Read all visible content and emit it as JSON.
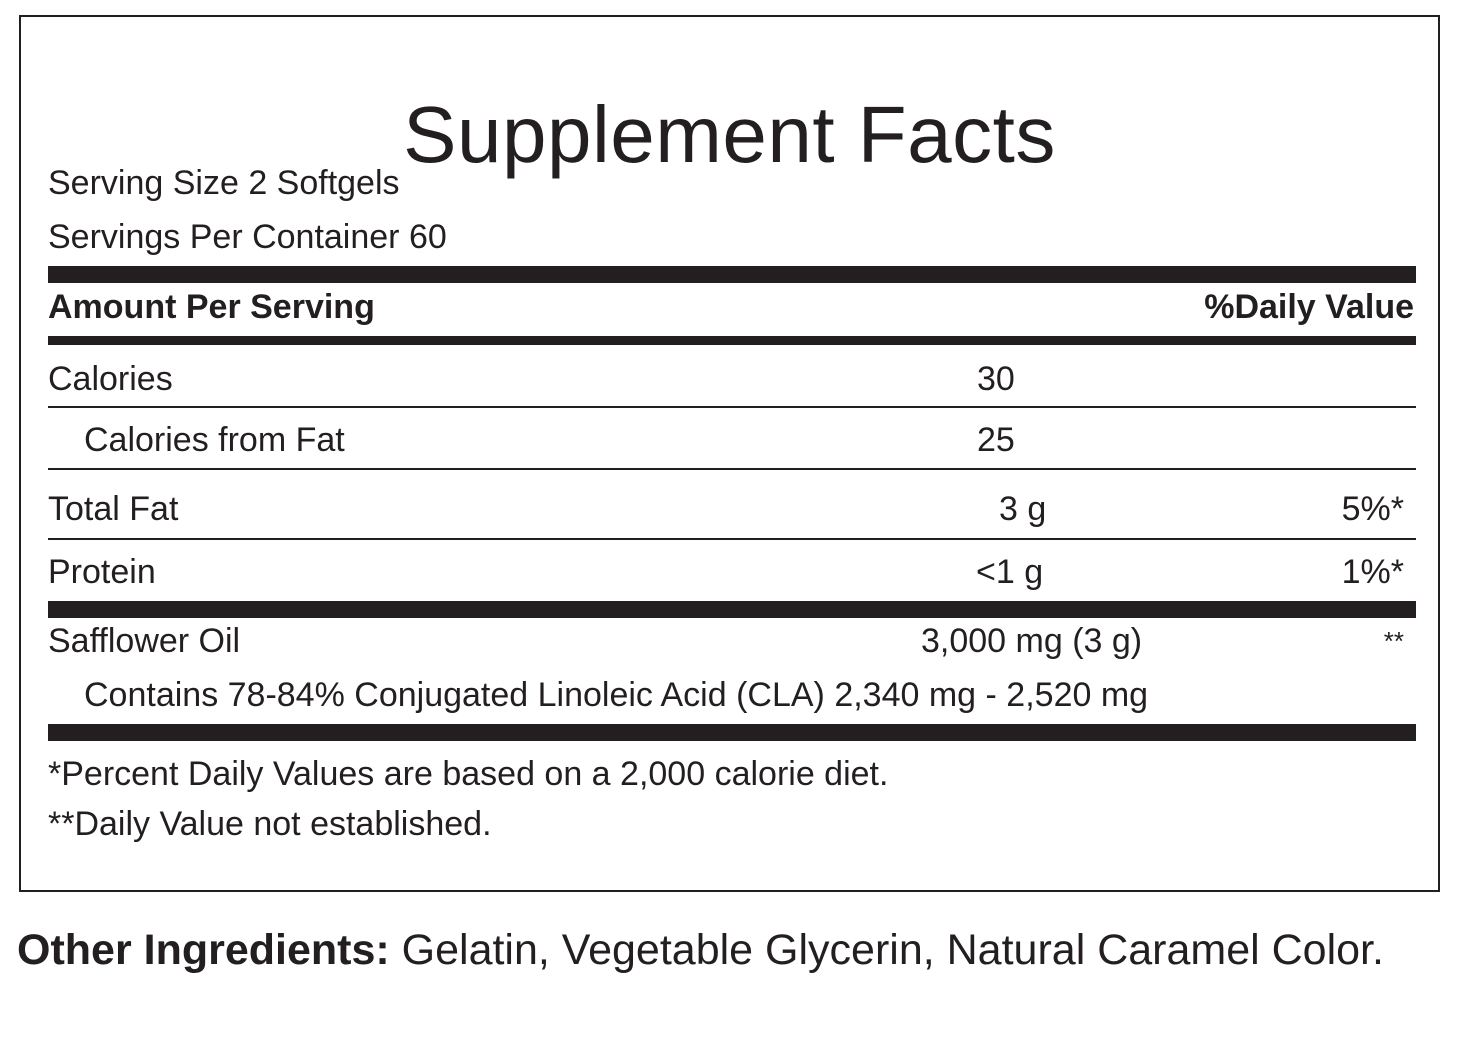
{
  "title": "Supplement Facts",
  "serving_size": "Serving Size 2 Softgels",
  "servings_per_container_label": "Servings Per Container",
  "servings_per_container_value": "60",
  "header": {
    "amount": "Amount Per Serving",
    "daily_value": "%Daily Value"
  },
  "rows": {
    "calories": {
      "name": "Calories",
      "amount": "30"
    },
    "calories_fat": {
      "name": "Calories from Fat",
      "amount": "25"
    },
    "total_fat": {
      "name": "Total Fat",
      "amount": "3 g",
      "dv": "5%*"
    },
    "protein": {
      "name": "Protein",
      "amount": "<1 g",
      "dv": "1%*"
    },
    "safflower": {
      "name": "Safflower Oil",
      "amount": "3,000 mg (3 g)",
      "dv": "**"
    },
    "cla": {
      "text": "Contains 78-84% Conjugated Linoleic Acid (CLA) 2,340 mg - 2,520 mg"
    }
  },
  "footnotes": [
    "*Percent Daily Values are based on a 2,000 calorie diet.",
    "**Daily Value not established."
  ],
  "other_ingredients": {
    "label": "Other Ingredients:",
    "text": " Gelatin, Vegetable Glycerin, Natural Caramel Color."
  }
}
